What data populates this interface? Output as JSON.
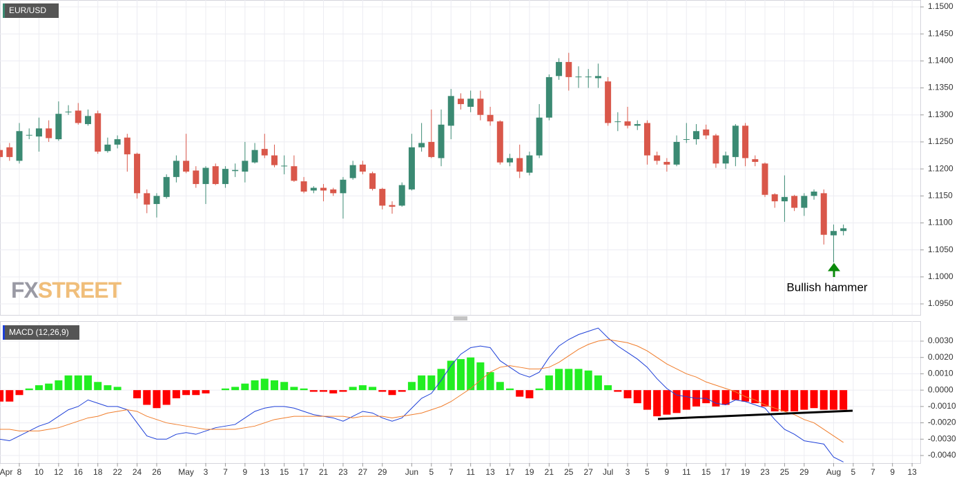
{
  "chart_data": [
    {
      "type": "candlestick",
      "title": "EUR/USD",
      "watermark": [
        "FX",
        "STREET"
      ],
      "annotation": "Bullish hammer",
      "up_color": "#3b8a73",
      "down_color": "#d9574a",
      "categories": [
        "Apr",
        null,
        "8",
        null,
        "10",
        null,
        "12",
        null,
        "16",
        null,
        "18",
        null,
        "22",
        null,
        "24",
        null,
        "26",
        null,
        null,
        "May",
        null,
        "3",
        null,
        "7",
        null,
        "9",
        null,
        "13",
        null,
        "15",
        null,
        "17",
        null,
        "21",
        null,
        "23",
        null,
        "27",
        null,
        "29",
        null,
        null,
        "Jun",
        null,
        "5",
        null,
        "7",
        null,
        "11",
        null,
        "13",
        null,
        "17",
        null,
        "19",
        null,
        "21",
        null,
        "25",
        null,
        "27",
        null,
        "Jul",
        null,
        "3",
        null,
        "5",
        null,
        "9",
        null,
        "11",
        null,
        "15",
        null,
        "17",
        null,
        "19",
        null,
        "23",
        null,
        "25",
        null,
        "29",
        null,
        null,
        "Aug",
        null,
        "5",
        null,
        "7",
        null,
        "9",
        null,
        "13"
      ],
      "open": [
        1.1235,
        1.124,
        1.1215,
        1.1262,
        1.126,
        1.1275,
        1.1255,
        1.1305,
        1.1308,
        1.1283,
        1.1303,
        1.1233,
        1.1245,
        1.1258,
        1.1228,
        1.1155,
        1.1135,
        1.1148,
        1.1185,
        1.1215,
        1.1197,
        1.1172,
        1.1205,
        1.1172,
        1.1196,
        1.1195,
        1.1212,
        1.1237,
        1.1225,
        1.1205,
        1.1205,
        1.1177,
        1.116,
        1.1165,
        1.1162,
        1.1155,
        1.1183,
        1.1208,
        1.1192,
        1.1163,
        1.1133,
        1.1132,
        1.1162,
        1.124,
        1.125,
        1.122,
        1.128,
        1.133,
        1.1315,
        1.133,
        1.13,
        1.1288,
        1.1212,
        1.122,
        1.1193,
        1.1225,
        1.1295,
        1.1372,
        1.1398,
        1.137,
        1.137,
        1.1368,
        1.1362,
        1.1287,
        1.1288,
        1.128,
        1.1285,
        1.1225,
        1.1213,
        1.1208,
        1.1254,
        1.1255,
        1.1273,
        1.1262,
        1.121,
        1.1222,
        1.128,
        1.1218,
        1.121,
        1.1153,
        1.114,
        1.115,
        1.1128,
        1.115,
        1.1155,
        1.1077,
        1.1085,
        null,
        null,
        null,
        null,
        null,
        null,
        null
      ],
      "high": [
        1.1245,
        1.1248,
        1.1285,
        1.1275,
        1.1295,
        1.129,
        1.1325,
        1.1318,
        1.1322,
        1.131,
        1.1308,
        1.1258,
        1.1262,
        1.1265,
        1.123,
        1.1162,
        1.1155,
        1.119,
        1.1225,
        1.1265,
        1.1205,
        1.1205,
        1.121,
        1.1205,
        1.121,
        1.125,
        1.1248,
        1.1265,
        1.1245,
        1.1225,
        1.1225,
        1.1185,
        1.1168,
        1.1172,
        1.1165,
        1.1185,
        1.1215,
        1.1215,
        1.1195,
        1.1165,
        1.114,
        1.1175,
        1.1265,
        1.1285,
        1.131,
        1.131,
        1.1348,
        1.134,
        1.1345,
        1.1345,
        1.1315,
        1.129,
        1.1228,
        1.1245,
        1.1232,
        1.132,
        1.1375,
        1.1405,
        1.1415,
        1.139,
        1.1385,
        1.1395,
        1.137,
        1.1305,
        1.1315,
        1.129,
        1.129,
        1.1232,
        1.122,
        1.1262,
        1.1285,
        1.1283,
        1.1282,
        1.1265,
        1.1232,
        1.1283,
        1.1285,
        1.1225,
        1.1212,
        1.1155,
        1.1188,
        1.1152,
        1.1155,
        1.1162,
        1.1162,
        1.1097,
        1.1097,
        null,
        null,
        null,
        null,
        null,
        null,
        null
      ],
      "low": [
        1.1215,
        1.1215,
        1.121,
        1.1255,
        1.1232,
        1.125,
        1.1252,
        1.13,
        1.1282,
        1.128,
        1.1228,
        1.123,
        1.1238,
        1.1195,
        1.1145,
        1.1118,
        1.111,
        1.1145,
        1.1175,
        1.1192,
        1.1165,
        1.1135,
        1.117,
        1.1165,
        1.1185,
        1.1175,
        1.121,
        1.122,
        1.1203,
        1.119,
        1.1176,
        1.1155,
        1.1155,
        1.114,
        1.115,
        1.1108,
        1.118,
        1.119,
        1.116,
        1.1125,
        1.1117,
        1.113,
        1.116,
        1.1232,
        1.122,
        1.1205,
        1.1255,
        1.131,
        1.1305,
        1.129,
        1.128,
        1.1208,
        1.1205,
        1.1183,
        1.1188,
        1.122,
        1.129,
        1.1365,
        1.1345,
        1.135,
        1.135,
        1.135,
        1.128,
        1.127,
        1.1275,
        1.1272,
        1.1208,
        1.1208,
        1.1195,
        1.1205,
        1.1248,
        1.1245,
        1.1255,
        1.1202,
        1.12,
        1.1205,
        1.1205,
        1.1205,
        1.1148,
        1.1128,
        1.1102,
        1.1122,
        1.1113,
        1.1143,
        1.106,
        1.1027,
        1.1077,
        null,
        null,
        null,
        null,
        null,
        null,
        null
      ],
      "close": [
        1.1222,
        1.1222,
        1.127,
        1.1263,
        1.1275,
        1.1257,
        1.1302,
        1.1306,
        1.1285,
        1.1298,
        1.1232,
        1.1245,
        1.1255,
        1.1227,
        1.1155,
        1.1134,
        1.115,
        1.1185,
        1.1215,
        1.1195,
        1.1172,
        1.1202,
        1.1172,
        1.12,
        1.1198,
        1.1215,
        1.1235,
        1.1225,
        1.1207,
        1.1206,
        1.1178,
        1.1158,
        1.1165,
        1.116,
        1.1155,
        1.118,
        1.1207,
        1.1195,
        1.1163,
        1.1132,
        1.113,
        1.117,
        1.124,
        1.1248,
        1.1222,
        1.1282,
        1.1335,
        1.132,
        1.133,
        1.13,
        1.1288,
        1.1212,
        1.122,
        1.1195,
        1.1225,
        1.1295,
        1.137,
        1.1398,
        1.137,
        1.1371,
        1.1371,
        1.1372,
        1.1285,
        1.1288,
        1.128,
        1.1283,
        1.1225,
        1.1215,
        1.1208,
        1.125,
        1.1255,
        1.127,
        1.1262,
        1.121,
        1.1225,
        1.128,
        1.122,
        1.1213,
        1.1152,
        1.114,
        1.1148,
        1.1128,
        1.115,
        1.1158,
        1.1078,
        1.1085,
        1.109,
        null,
        null,
        null,
        null,
        null,
        null,
        null
      ],
      "ylim": [
        1.09296,
        1.15128
      ],
      "yticks": [
        {
          "value": 1.15,
          "label": "1.1500"
        },
        {
          "value": 1.145,
          "label": "1.1450"
        },
        {
          "value": 1.14,
          "label": "1.1400"
        },
        {
          "value": 1.135,
          "label": "1.1350"
        },
        {
          "value": 1.13,
          "label": "1.1300"
        },
        {
          "value": 1.125,
          "label": "1.1250"
        },
        {
          "value": 1.12,
          "label": "1.1200"
        },
        {
          "value": 1.115,
          "label": "1.1150"
        },
        {
          "value": 1.11,
          "label": "1.1100"
        },
        {
          "value": 1.105,
          "label": "1.1050"
        },
        {
          "value": 1.1,
          "label": "1.1000"
        },
        {
          "value": 1.095,
          "label": "1.0950"
        }
      ],
      "grid": true
    },
    {
      "type": "macd",
      "title": "MACD (12,26,9)",
      "histogram": {
        "up_color": "#22ee22",
        "down_color": "#ff0000",
        "values": [
          -0.0007,
          -0.0007,
          -0.0003,
          0.0001,
          0.0003,
          0.0004,
          0.0006,
          0.0009,
          0.0009,
          0.0009,
          0.0005,
          0.0003,
          0.0002,
          0,
          -0.0005,
          -0.0009,
          -0.0011,
          -0.0009,
          -0.0005,
          -0.0003,
          -0.0003,
          -0.0002,
          0,
          0.0001,
          0.0002,
          0.0004,
          0.0006,
          0.0007,
          0.0006,
          0.0005,
          0.0002,
          0.0001,
          -0.0001,
          -0.0001,
          -0.0002,
          -0.0001,
          0.0002,
          0.0003,
          0.0002,
          -0.0001,
          -0.0003,
          -0.0001,
          0.0005,
          0.0009,
          0.0009,
          0.0013,
          0.0018,
          0.0019,
          0.002,
          0.0017,
          0.0011,
          0.0005,
          0.0001,
          -0.0004,
          -0.0005,
          0.0001,
          0.0009,
          0.0013,
          0.0013,
          0.0013,
          0.0012,
          0.0009,
          0.0003,
          -0.0001,
          -0.0005,
          -0.0008,
          -0.0012,
          -0.0016,
          -0.0015,
          -0.0014,
          -0.0012,
          -0.001,
          -0.0008,
          -0.001,
          -0.0009,
          -0.0006,
          -0.0007,
          -0.0008,
          -0.001,
          -0.0013,
          -0.0013,
          -0.0013,
          -0.0012,
          -0.0011,
          -0.0012,
          -0.0012,
          -0.0012
        ]
      },
      "series": [
        {
          "color": "#1d3fd8",
          "values": [
            -0.003,
            -0.0031,
            -0.0028,
            -0.0025,
            -0.0022,
            -0.002,
            -0.0016,
            -0.0012,
            -0.001,
            -0.0006,
            -0.0008,
            -0.001,
            -0.001,
            -0.0012,
            -0.002,
            -0.0028,
            -0.003,
            -0.003,
            -0.0027,
            -0.0026,
            -0.0027,
            -0.0025,
            -0.0023,
            -0.0022,
            -0.0021,
            -0.0017,
            -0.0013,
            -0.0011,
            -0.001,
            -0.001,
            -0.0011,
            -0.0013,
            -0.0015,
            -0.0016,
            -0.0017,
            -0.0019,
            -0.0016,
            -0.0013,
            -0.0014,
            -0.0017,
            -0.0019,
            -0.0017,
            -0.0011,
            -0.0005,
            -0.0002,
            0.0006,
            0.0015,
            0.0022,
            0.0026,
            0.0027,
            0.0026,
            0.0018,
            0.0014,
            0.001,
            0.0008,
            0.0011,
            0.002,
            0.0027,
            0.0031,
            0.0034,
            0.0036,
            0.0038,
            0.0032,
            0.0027,
            0.0023,
            0.0019,
            0.0014,
            0.0007,
            0.0001,
            -0.0003,
            -0.0004,
            -0.0005,
            -0.0005,
            -0.0008,
            -0.0009,
            -0.0006,
            -0.0007,
            -0.0009,
            -0.0011,
            -0.0018,
            -0.0024,
            -0.0027,
            -0.0031,
            -0.0032,
            -0.0033,
            -0.0041,
            -0.0044
          ]
        },
        {
          "color": "#f07c2a",
          "values": [
            -0.0024,
            -0.0024,
            -0.0025,
            -0.0025,
            -0.0025,
            -0.0024,
            -0.0023,
            -0.0021,
            -0.0019,
            -0.0017,
            -0.0016,
            -0.0014,
            -0.0013,
            -0.0012,
            -0.0013,
            -0.0016,
            -0.0018,
            -0.002,
            -0.0021,
            -0.0022,
            -0.0023,
            -0.0024,
            -0.0024,
            -0.0024,
            -0.0024,
            -0.0023,
            -0.0022,
            -0.002,
            -0.0018,
            -0.0017,
            -0.0016,
            -0.0016,
            -0.0016,
            -0.0016,
            -0.0016,
            -0.0016,
            -0.0017,
            -0.0016,
            -0.0016,
            -0.0016,
            -0.0017,
            -0.0016,
            -0.0015,
            -0.0014,
            -0.0012,
            -0.001,
            -0.0007,
            -0.0003,
            0.0001,
            0.0006,
            0.0011,
            0.0014,
            0.0015,
            0.0014,
            0.0013,
            0.0013,
            0.0014,
            0.0017,
            0.0021,
            0.0025,
            0.0028,
            0.003,
            0.0031,
            0.003,
            0.0029,
            0.0027,
            0.0024,
            0.002,
            0.0016,
            0.0013,
            0.001,
            0.0008,
            0.0005,
            0.0003,
            0.0001,
            -0.0001,
            -0.0004,
            -0.0006,
            -0.0009,
            -0.0011,
            -0.0013,
            -0.0015,
            -0.0018,
            -0.002,
            -0.0024,
            -0.0028,
            -0.0032
          ]
        }
      ],
      "ylim": [
        -0.004464,
        0.004223
      ],
      "yticks": [
        {
          "value": 0.003,
          "label": "0.0030"
        },
        {
          "value": 0.002,
          "label": "0.0020"
        },
        {
          "value": 0.001,
          "label": "0.0010"
        },
        {
          "value": 0,
          "label": "0.0000"
        },
        {
          "value": -0.001,
          "label": "-0.0010"
        },
        {
          "value": -0.002,
          "label": "-0.0020"
        },
        {
          "value": -0.003,
          "label": "-0.0030"
        },
        {
          "value": -0.004,
          "label": "-0.0040"
        }
      ],
      "grid": true
    }
  ]
}
